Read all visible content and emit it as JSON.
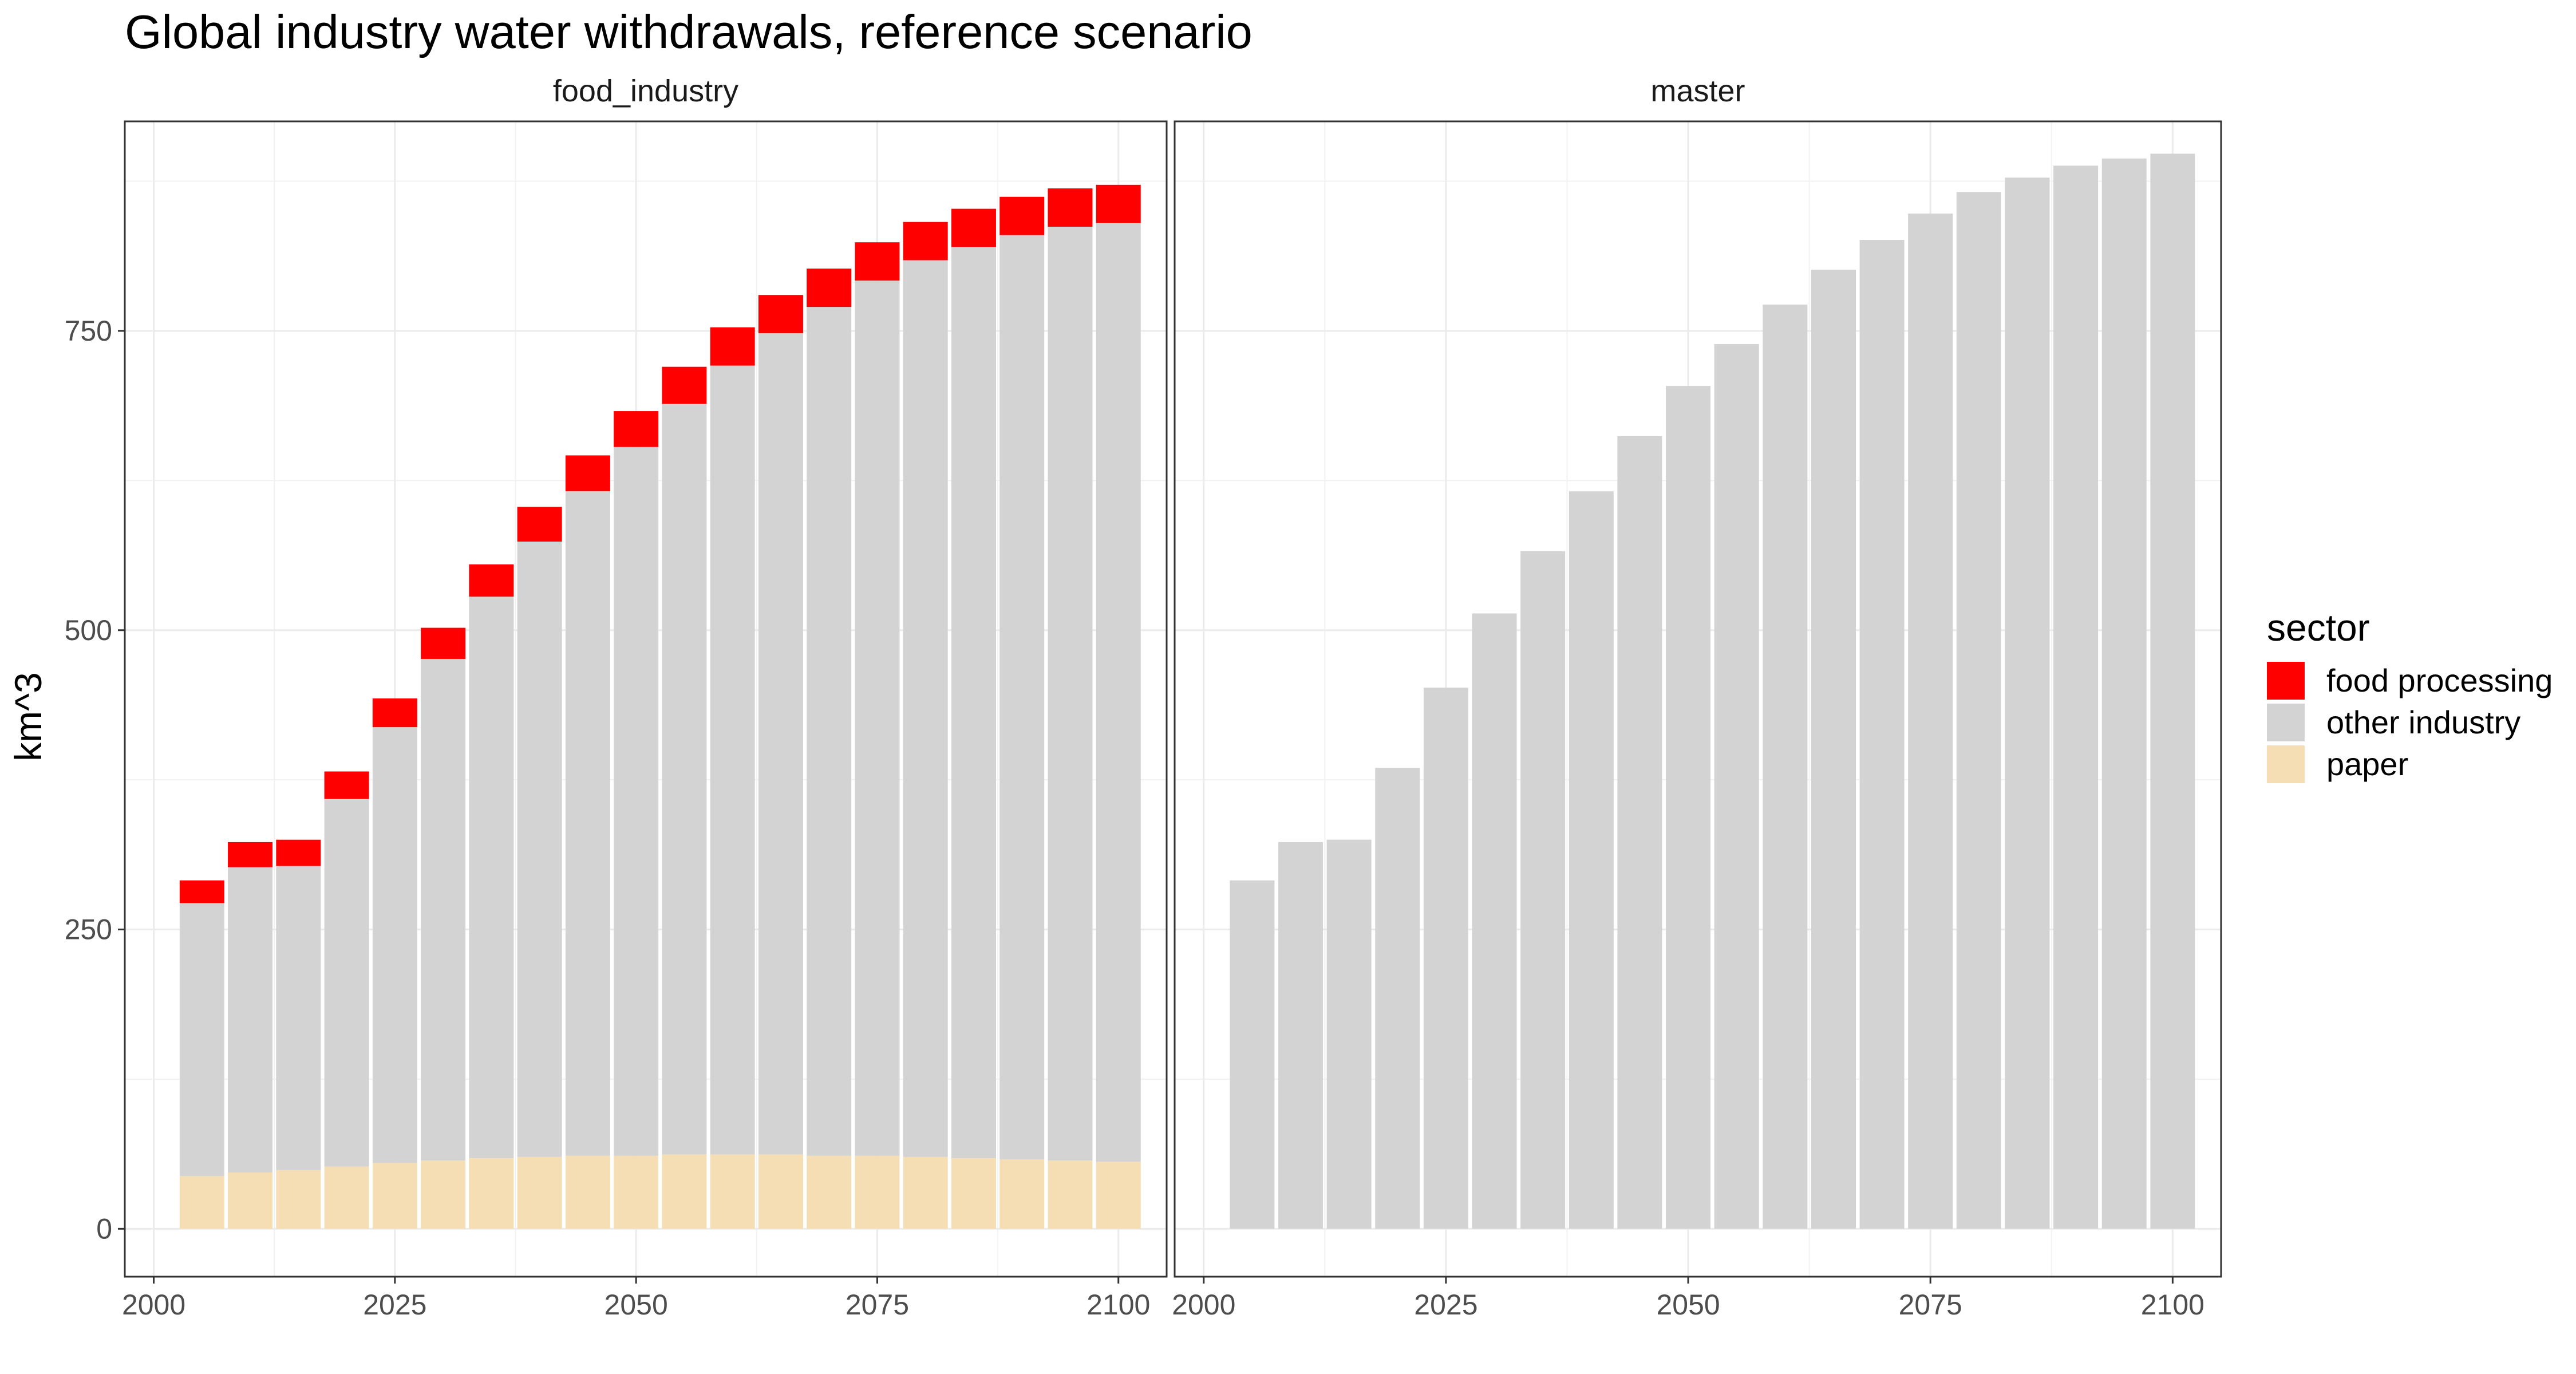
{
  "title": "Global industry water withdrawals, reference scenario",
  "ylabel": "km^3",
  "colors": {
    "food processing": "#ff0000",
    "other industry": "#d3d3d3",
    "paper": "#f5deb3"
  },
  "legend": {
    "title": "sector",
    "items": [
      "food processing",
      "other industry",
      "paper"
    ]
  },
  "chart_data": [
    {
      "type": "bar",
      "stacked": true,
      "panel": "food_industry",
      "x": [
        2005,
        2010,
        2015,
        2020,
        2025,
        2030,
        2035,
        2040,
        2045,
        2050,
        2055,
        2060,
        2065,
        2070,
        2075,
        2080,
        2085,
        2090,
        2095,
        2100
      ],
      "series": [
        {
          "name": "paper",
          "values": [
            44,
            47,
            49,
            52,
            55,
            57,
            59,
            60,
            61,
            61,
            62,
            62,
            62,
            61,
            61,
            60,
            59,
            58,
            57,
            56
          ]
        },
        {
          "name": "other industry",
          "values": [
            228,
            255,
            254,
            307,
            364,
            419,
            469,
            514,
            555,
            592,
            627,
            659,
            686,
            709,
            731,
            749,
            761,
            772,
            780,
            784
          ]
        },
        {
          "name": "food processing",
          "values": [
            19,
            21,
            22,
            23,
            24,
            26,
            27,
            29,
            30,
            30,
            31,
            32,
            32,
            32,
            32,
            32,
            32,
            32,
            32,
            32
          ]
        }
      ],
      "ylim": [
        -40,
        925
      ],
      "xlim": [
        1997,
        2105
      ],
      "yticks": [
        0,
        250,
        500,
        750
      ],
      "xticks": [
        2000,
        2025,
        2050,
        2075,
        2100
      ]
    },
    {
      "type": "bar",
      "stacked": true,
      "panel": "master",
      "x": [
        2005,
        2010,
        2015,
        2020,
        2025,
        2030,
        2035,
        2040,
        2045,
        2050,
        2055,
        2060,
        2065,
        2070,
        2075,
        2080,
        2085,
        2090,
        2095,
        2100
      ],
      "series": [
        {
          "name": "other industry",
          "values": [
            291,
            323,
            325,
            385,
            452,
            514,
            566,
            616,
            662,
            704,
            739,
            772,
            801,
            826,
            848,
            866,
            878,
            888,
            894,
            898
          ]
        }
      ],
      "ylim": [
        -40,
        925
      ],
      "xlim": [
        1997,
        2105
      ],
      "yticks": [
        0,
        250,
        500,
        750
      ],
      "xticks": [
        2000,
        2025,
        2050,
        2075,
        2100
      ]
    }
  ]
}
